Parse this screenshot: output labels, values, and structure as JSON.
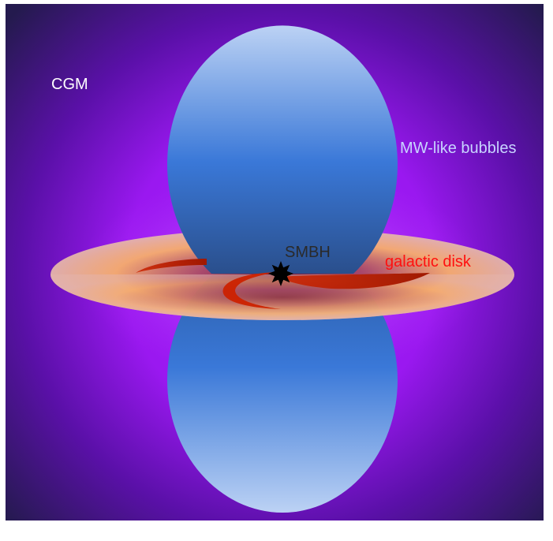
{
  "labels": {
    "cgm": "CGM",
    "bubbles": "MW-like bubbles",
    "smbh": "SMBH",
    "disk": "galactic disk"
  },
  "colors": {
    "cgm_center": "#a520ff",
    "cgm_edge": "#241a4e",
    "bubble_light": "#bcd2f4",
    "bubble_mid": "#3a78d8",
    "bubble_dark": "#2a5aa0",
    "disk_center": "#6e1030",
    "disk_mid": "#f6ae6c",
    "disk_edge": "#e0b0a8",
    "spiral_arm": "#cc2200",
    "smbh": "#000000",
    "label_cgm": "#ffffff",
    "label_bubbles": "#c8d4ff",
    "label_smbh": "#2a2a2a",
    "label_disk": "#ff1010"
  }
}
